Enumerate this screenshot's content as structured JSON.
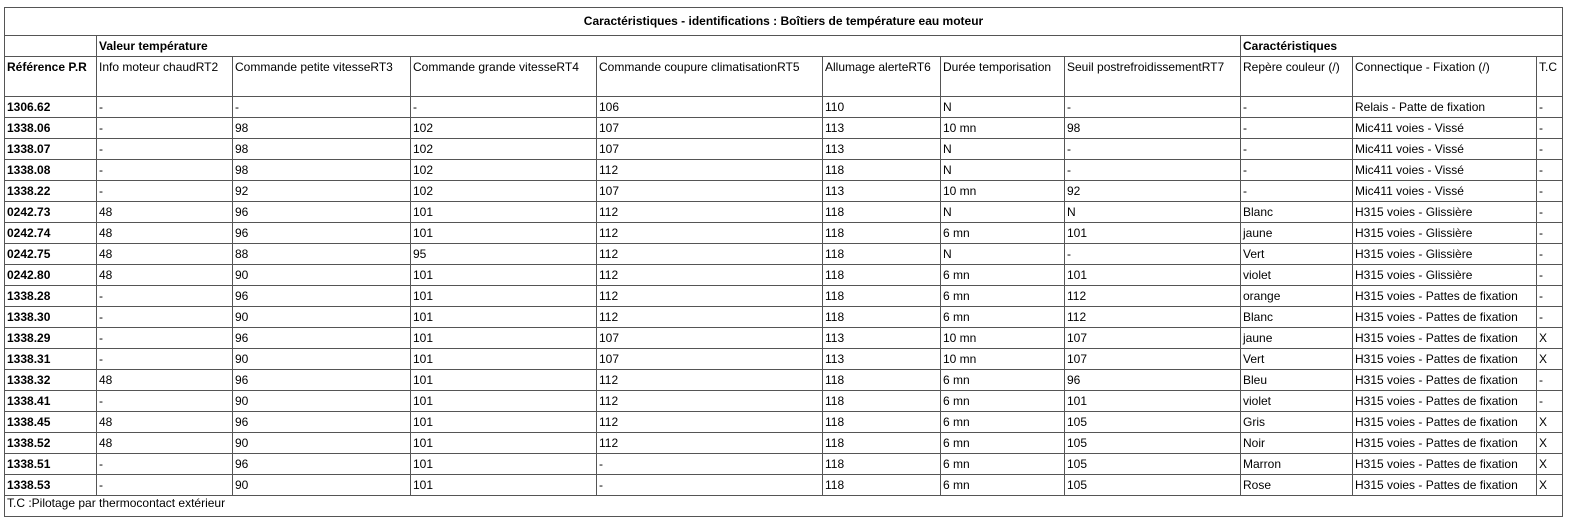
{
  "table": {
    "title": "Caractéristiques - identifications : Boîtiers de température eau moteur",
    "group_headers": [
      "Valeur température",
      "Caractéristiques"
    ],
    "columns": [
      "Référence P.R",
      "Info moteur chaudRT2",
      "Commande petite vitesseRT3",
      "Commande grande vitesseRT4",
      "Commande coupure climatisationRT5",
      "Allumage alerteRT6",
      "Durée temporisation",
      "Seuil postrefroidissementRT7",
      "Repère couleur (/)",
      "Connectique - Fixation (/)",
      "T.C"
    ],
    "rows": [
      [
        "1306.62",
        "-",
        "-",
        "-",
        "106",
        "110",
        "N",
        "-",
        "-",
        "Relais - Patte de fixation",
        "-"
      ],
      [
        "1338.06",
        "-",
        "98",
        "102",
        "107",
        "113",
        "10 mn",
        "98",
        "-",
        "Mic411 voies - Vissé",
        "-"
      ],
      [
        "1338.07",
        "-",
        "98",
        "102",
        "107",
        "113",
        "N",
        "-",
        "-",
        "Mic411 voies - Vissé",
        "-"
      ],
      [
        "1338.08",
        "-",
        "98",
        "102",
        "112",
        "118",
        "N",
        "-",
        "-",
        "Mic411 voies - Vissé",
        "-"
      ],
      [
        "1338.22",
        "-",
        "92",
        "102",
        "107",
        "113",
        "10 mn",
        "92",
        "-",
        "Mic411 voies - Vissé",
        "-"
      ],
      [
        "0242.73",
        "48",
        "96",
        "101",
        "112",
        "118",
        "N",
        "N",
        "Blanc",
        "H315 voies - Glissière",
        "-"
      ],
      [
        "0242.74",
        "48",
        "96",
        "101",
        "112",
        "118",
        "6 mn",
        "101",
        "jaune",
        "H315 voies - Glissière",
        "-"
      ],
      [
        "0242.75",
        "48",
        "88",
        "95",
        "112",
        "118",
        "N",
        "-",
        "Vert",
        "H315 voies - Glissière",
        "-"
      ],
      [
        "0242.80",
        "48",
        "90",
        "101",
        "112",
        "118",
        "6 mn",
        "101",
        "violet",
        "H315 voies - Glissière",
        "-"
      ],
      [
        "1338.28",
        "-",
        "96",
        "101",
        "112",
        "118",
        "6 mn",
        "112",
        "orange",
        "H315 voies - Pattes de fixation",
        "-"
      ],
      [
        "1338.30",
        "-",
        "90",
        "101",
        "112",
        "118",
        "6 mn",
        "112",
        "Blanc",
        "H315 voies - Pattes de fixation",
        "-"
      ],
      [
        "1338.29",
        "-",
        "96",
        "101",
        "107",
        "113",
        "10 mn",
        "107",
        "jaune",
        "H315 voies - Pattes de fixation",
        "X"
      ],
      [
        "1338.31",
        "-",
        "90",
        "101",
        "107",
        "113",
        "10 mn",
        "107",
        "Vert",
        "H315 voies - Pattes de fixation",
        "X"
      ],
      [
        "1338.32",
        "48",
        "96",
        "101",
        "112",
        "118",
        "6 mn",
        "96",
        "Bleu",
        "H315 voies - Pattes de fixation",
        "-"
      ],
      [
        "1338.41",
        "-",
        "90",
        "101",
        "112",
        "118",
        "6 mn",
        "101",
        "violet",
        "H315 voies - Pattes de fixation",
        "-"
      ],
      [
        "1338.45",
        "48",
        "96",
        "101",
        "112",
        "118",
        "6 mn",
        "105",
        "Gris",
        "H315 voies - Pattes de fixation",
        "X"
      ],
      [
        "1338.52",
        "48",
        "90",
        "101",
        "112",
        "118",
        "6 mn",
        "105",
        "Noir",
        "H315 voies - Pattes de fixation",
        "X"
      ],
      [
        "1338.51",
        "-",
        "96",
        "101",
        "-",
        "118",
        "6 mn",
        "105",
        "Marron",
        "H315 voies - Pattes de fixation",
        "X"
      ],
      [
        "1338.53",
        "-",
        "90",
        "101",
        "-",
        "118",
        "6 mn",
        "105",
        "Rose",
        "H315 voies - Pattes de fixation",
        "X"
      ]
    ],
    "footnote": "T.C :Pilotage par thermocontact extérieur"
  }
}
